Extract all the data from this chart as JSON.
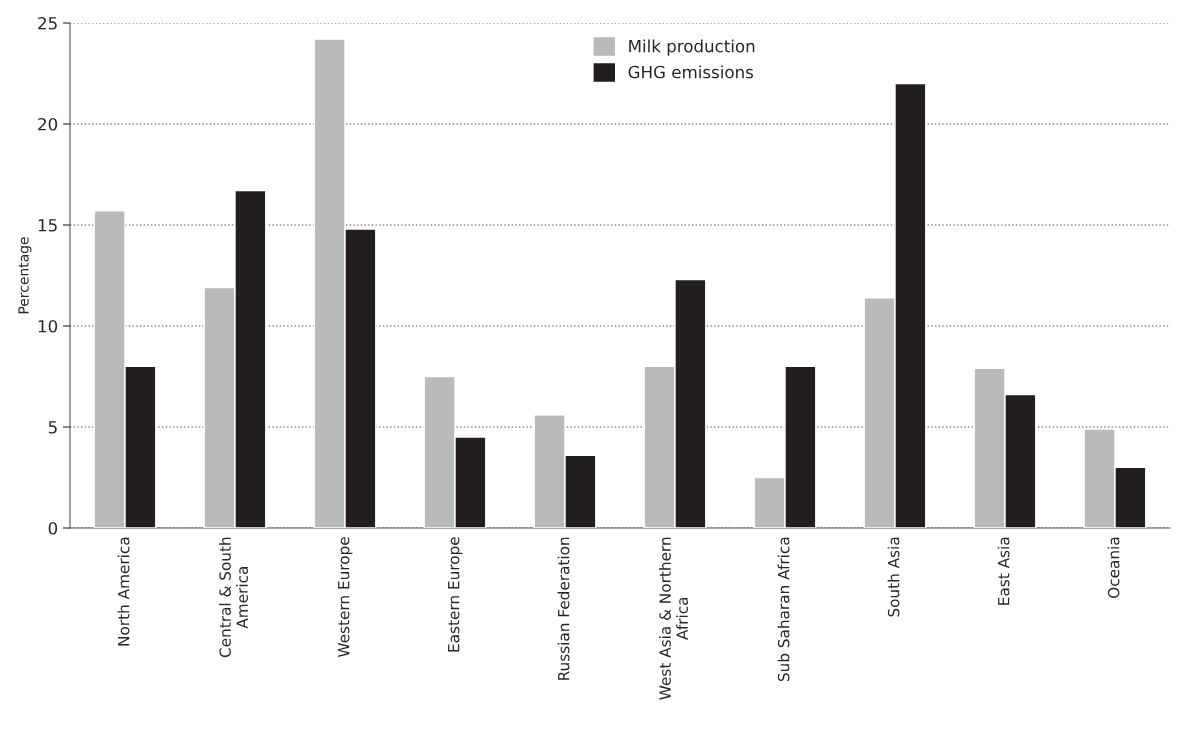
{
  "chart_data": {
    "type": "bar",
    "ylabel": "Percentage",
    "categories": [
      "North America",
      "Central & South\nAmerica",
      "Western Europe",
      "Eastern Europe",
      "Russian Federation",
      "West Asia & Northern\nAfrica",
      "Sub Saharan Africa",
      "South Asia",
      "East Asia",
      "Oceania"
    ],
    "series": [
      {
        "name": "Milk production",
        "color": "#b9babc",
        "values": [
          15.7,
          11.9,
          24.2,
          7.5,
          5.6,
          8.0,
          2.5,
          11.4,
          7.9,
          4.9
        ]
      },
      {
        "name": "GHG emissions",
        "color": "#231f20",
        "values": [
          8.0,
          16.7,
          14.8,
          4.5,
          3.6,
          12.3,
          8.0,
          22.0,
          6.6,
          3.0
        ]
      }
    ],
    "ylim": [
      0,
      25
    ],
    "yticks": [
      0,
      5,
      10,
      15,
      20,
      25
    ],
    "grid": "y",
    "legend": "top"
  }
}
